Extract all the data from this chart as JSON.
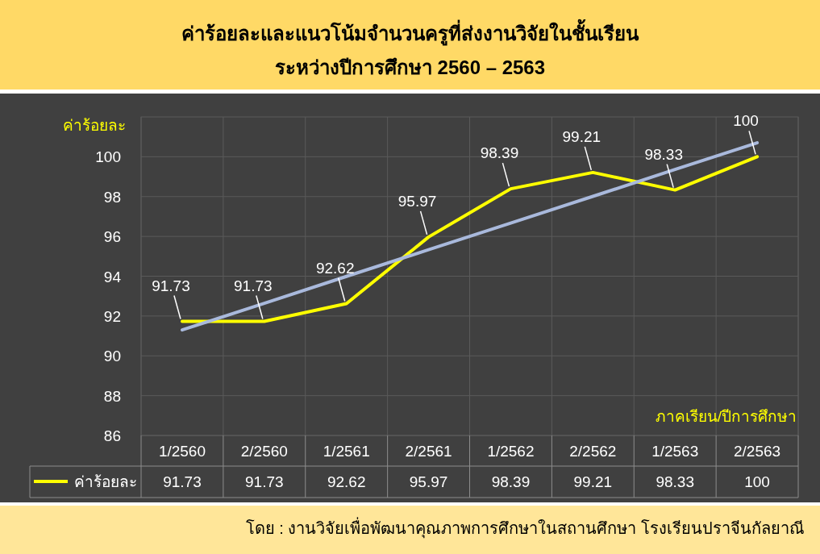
{
  "chart_data": {
    "type": "line",
    "title": "ค่าร้อยละและแนวโน้มจำนวนครูที่ส่งงานวิจัยในชั้นเรียน",
    "subtitle": "ระหว่างปีการศึกษา 2560 – 2563",
    "ylabel": "ค่าร้อยละ",
    "xlabel": "ภาคเรียน/ปีการศึกษา",
    "categories": [
      "1/2560",
      "2/2560",
      "1/2561",
      "2/2561",
      "1/2562",
      "2/2562",
      "1/2563",
      "2/2563"
    ],
    "series": [
      {
        "name": "ค่าร้อยละ",
        "color": "#ffff00",
        "values": [
          91.73,
          91.73,
          92.62,
          95.97,
          98.39,
          99.21,
          98.33,
          100
        ],
        "value_labels": [
          "91.73",
          "91.73",
          "92.62",
          "95.97",
          "98.39",
          "99.21",
          "98.33",
          "100"
        ]
      },
      {
        "type": "line",
        "color": "#a9b9dc",
        "values": [
          91.3,
          92.64,
          93.99,
          95.33,
          96.67,
          98.01,
          99.36,
          100.7
        ]
      }
    ],
    "ylim": [
      86,
      102
    ],
    "yticks": [
      86,
      88,
      90,
      92,
      94,
      96,
      98,
      100
    ],
    "grid": true,
    "legend": "bottom",
    "marker": "none",
    "line_style": "solid",
    "annotations": [
      "โดย : งานวิจัยเพื่อพัฒนาคุณภาพการศึกษาในสถานศึกษา โรงเรียนปราจีนกัลยาณี"
    ]
  }
}
